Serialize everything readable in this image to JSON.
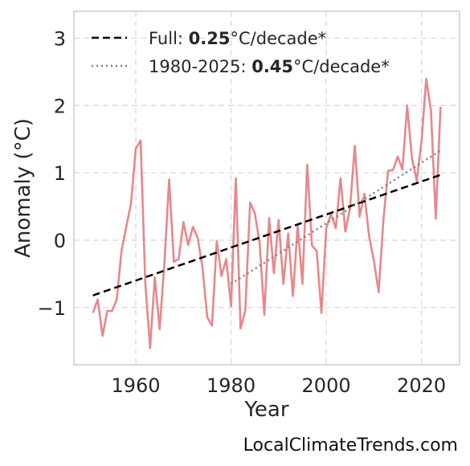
{
  "chart_data": {
    "type": "line",
    "xlabel": "Year",
    "ylabel": "Anomaly (°C)",
    "xlim": [
      1947,
      2028
    ],
    "ylim": [
      -1.85,
      3.4
    ],
    "x_ticks": [
      {
        "value": 1960,
        "label": "1960"
      },
      {
        "value": 1980,
        "label": "1980"
      },
      {
        "value": 2000,
        "label": "2000"
      },
      {
        "value": 2020,
        "label": "2020"
      }
    ],
    "y_ticks": [
      {
        "value": -1,
        "label": "−1"
      },
      {
        "value": 0,
        "label": "0"
      },
      {
        "value": 1,
        "label": "1"
      },
      {
        "value": 2,
        "label": "2"
      },
      {
        "value": 3,
        "label": "3"
      }
    ],
    "grid": true,
    "legend_position": "top-left",
    "colors": {
      "anomaly": "#e8878a",
      "trend_full": "#000000",
      "trend_recent": "#808080",
      "grid": "#d9d9d9",
      "spine": "#cccccc"
    },
    "series": [
      {
        "x": [
          1951,
          1952,
          1953,
          1954,
          1955,
          1956,
          1957,
          1958,
          1959,
          1960,
          1961,
          1962,
          1963,
          1964,
          1965,
          1966,
          1967,
          1968,
          1969,
          1970,
          1971,
          1972,
          1973,
          1974,
          1975,
          1976,
          1977,
          1978,
          1979,
          1980,
          1981,
          1982,
          1983,
          1984,
          1985,
          1986,
          1987,
          1988,
          1989,
          1990,
          1991,
          1992,
          1993,
          1994,
          1995,
          1996,
          1997,
          1998,
          1999,
          2000,
          2001,
          2002,
          2003,
          2004,
          2005,
          2006,
          2007,
          2008,
          2009,
          2010,
          2011,
          2012,
          2013,
          2014,
          2015,
          2016,
          2017,
          2018,
          2019,
          2020,
          2021,
          2022,
          2023,
          2024
        ],
        "values": [
          -1.08,
          -0.88,
          -1.42,
          -1.05,
          -1.05,
          -0.88,
          -0.15,
          0.2,
          0.55,
          1.36,
          1.48,
          -0.65,
          -1.6,
          -0.55,
          -1.32,
          -0.35,
          0.9,
          -0.32,
          -0.28,
          0.27,
          -0.07,
          0.2,
          0.03,
          -0.4,
          -1.14,
          -1.27,
          -0.01,
          -0.53,
          -0.28,
          -0.98,
          0.92,
          -1.31,
          -1.05,
          0.56,
          0.4,
          -0.04,
          -1.11,
          0.33,
          -0.49,
          0.3,
          -0.65,
          0.1,
          -0.83,
          0.22,
          -0.65,
          1.12,
          -0.08,
          -0.16,
          -1.08,
          0.18,
          0.39,
          0.18,
          0.92,
          0.13,
          0.48,
          1.4,
          0.35,
          0.69,
          0.06,
          -0.3,
          -0.77,
          0.3,
          1.03,
          1.04,
          1.24,
          1.05,
          2.0,
          1.22,
          0.88,
          1.46,
          2.4,
          1.92,
          0.32,
          1.98
        ]
      }
    ],
    "trend_full": {
      "x": [
        1951,
        2024
      ],
      "y": [
        -0.82,
        0.97
      ]
    },
    "trend_recent": {
      "x": [
        1980,
        2024
      ],
      "y": [
        -0.65,
        1.33
      ]
    },
    "legend": [
      {
        "prefix": "Full: ",
        "value": "0.25",
        "suffix": "°C/decade*"
      },
      {
        "prefix": "1980-2025: ",
        "value": "0.45",
        "suffix": "°C/decade*"
      }
    ]
  },
  "credit": "LocalClimateTrends.com"
}
